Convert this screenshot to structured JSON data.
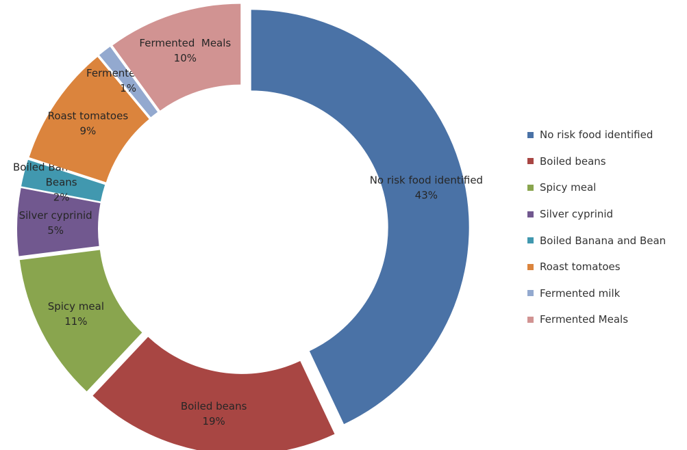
{
  "chart_data": {
    "type": "pie",
    "style": "exploded-donut",
    "slices": [
      {
        "label": "No risk food identified",
        "value": 43,
        "display": "43%",
        "color": "#4a72a6"
      },
      {
        "label": "Boiled beans",
        "value": 19,
        "display": "19%",
        "color": "#a84643"
      },
      {
        "label": "Spicy meal",
        "value": 11,
        "display": "11%",
        "color": "#89a54e"
      },
      {
        "label": "Silver cyprinid",
        "value": 5,
        "display": "5%",
        "color": "#71588f"
      },
      {
        "label": "Boiled Banana and Beans",
        "value": 2,
        "display": "2%",
        "color": "#4198af"
      },
      {
        "label": "Roast tomatoes",
        "value": 9,
        "display": "9%",
        "color": "#db843d"
      },
      {
        "label": "Fermented milk",
        "value": 1,
        "display": "1%",
        "color": "#93a9cf"
      },
      {
        "label": "Fermented  Meals",
        "value": 10,
        "display": "10%",
        "color": "#d19392"
      }
    ],
    "slice_text": [
      [
        "No risk food identified",
        "43%"
      ],
      [
        "Boiled beans",
        "19%"
      ],
      [
        "Spicy meal",
        "11%"
      ],
      [
        "Silver cyprinid",
        "5%"
      ],
      [
        "Boiled Banana and",
        "Beans",
        "2%"
      ],
      [
        "Roast tomatoes",
        "9%"
      ],
      [
        "Fermented  milk",
        "1%"
      ],
      [
        "Fermented  Meals",
        "10%"
      ]
    ],
    "legend": {
      "position": "right",
      "items": [
        "No risk food identified",
        "Boiled beans",
        "Spicy meal",
        "Silver cyprinid",
        "Boiled Banana and Bean",
        "Roast tomatoes",
        "Fermented milk",
        "Fermented Meals"
      ]
    }
  }
}
